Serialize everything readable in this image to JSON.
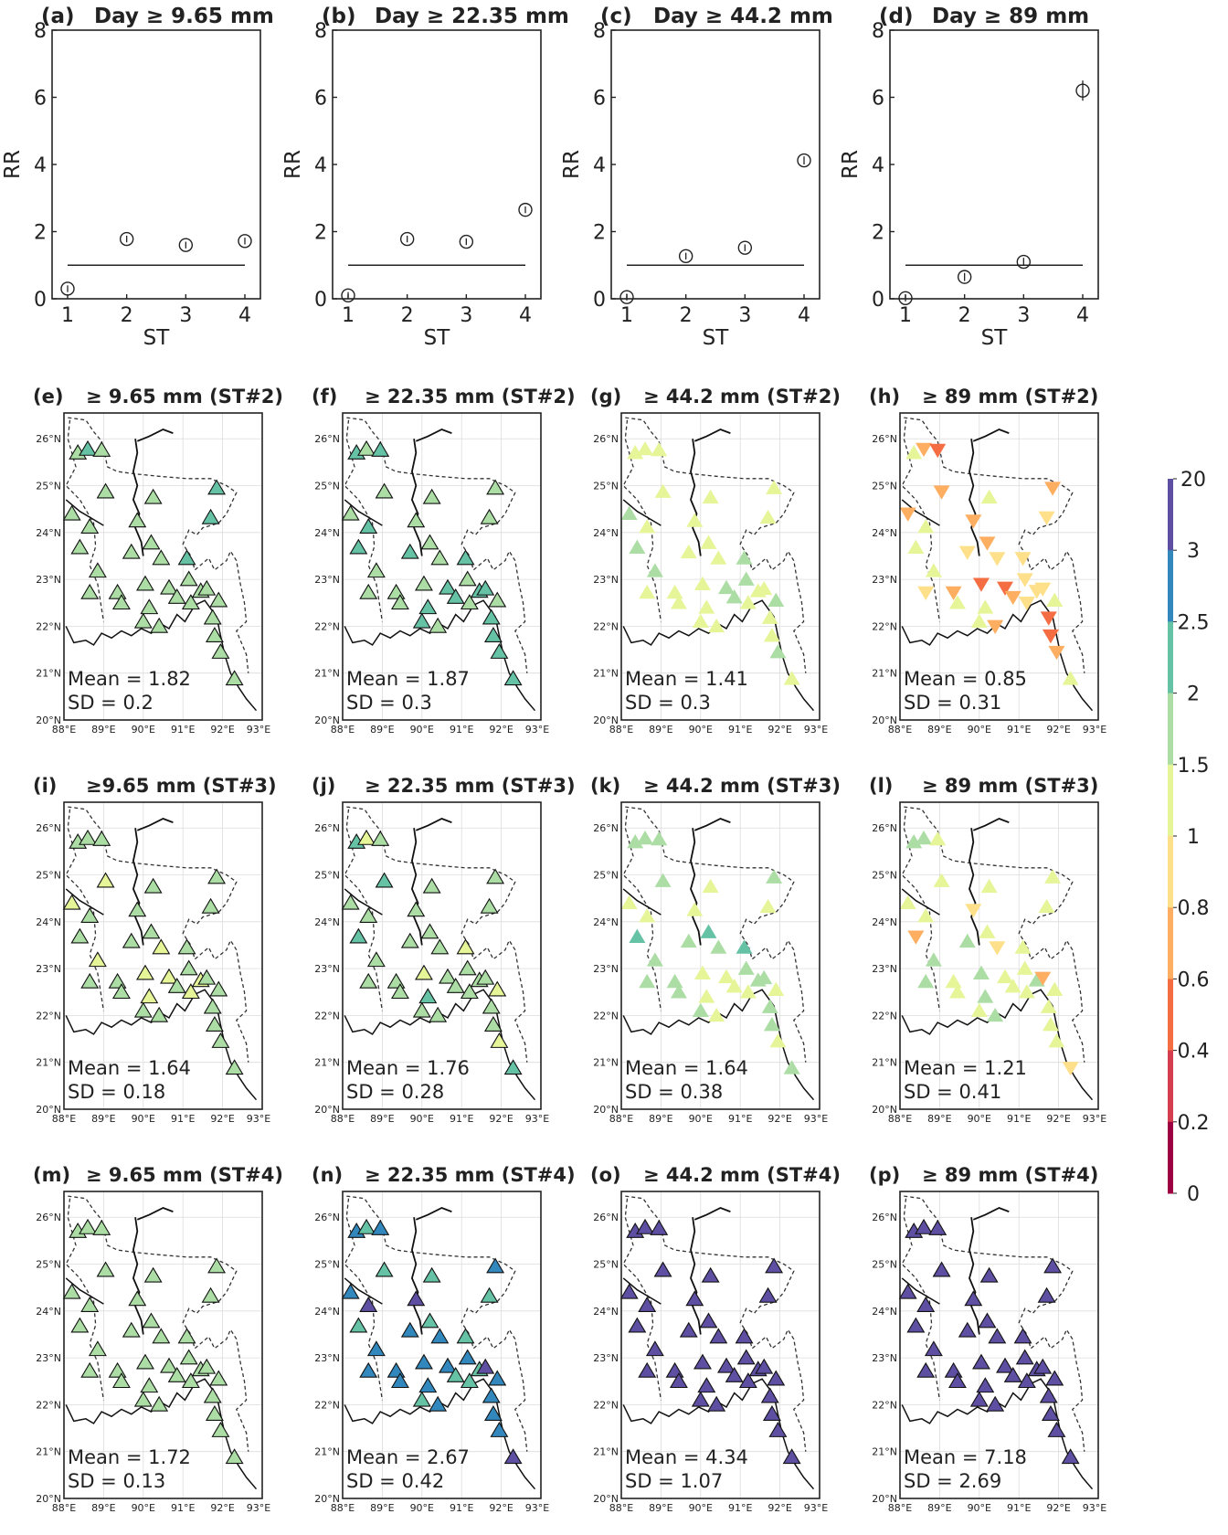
{
  "colorbar": {
    "ticks": [
      "20",
      "3",
      "2.5",
      "2",
      "1.5",
      "1",
      "0.8",
      "0.6",
      "0.4",
      "0.2",
      "0"
    ],
    "colors": [
      "#5e4fa2",
      "#3288bd",
      "#66c2a5",
      "#abdda4",
      "#e6f598",
      "#fee08b",
      "#fdae61",
      "#f46d43",
      "#d53e4f",
      "#9e0142"
    ]
  },
  "chart_data": [
    {
      "type": "scatter",
      "id": "a",
      "panel_label": "(a)",
      "title": "Day ≥ 9.65 mm",
      "xlabel": "ST",
      "ylabel": "RR",
      "x": [
        1,
        2,
        3,
        4
      ],
      "y": [
        0.3,
        1.78,
        1.6,
        1.72
      ],
      "err": [
        0.1,
        0.1,
        0.1,
        0.1
      ],
      "reference_line": 1,
      "ylim": [
        0,
        8
      ],
      "yticks": [
        "0",
        "2",
        "4",
        "6",
        "8"
      ],
      "xticks": [
        "1",
        "2",
        "3",
        "4"
      ]
    },
    {
      "type": "scatter",
      "id": "b",
      "panel_label": "(b)",
      "title": "Day ≥ 22.35 mm",
      "xlabel": "ST",
      "ylabel": "RR",
      "x": [
        1,
        2,
        3,
        4
      ],
      "y": [
        0.1,
        1.78,
        1.7,
        2.65
      ],
      "err": [
        0.1,
        0.1,
        0.1,
        0.1
      ],
      "reference_line": 1,
      "ylim": [
        0,
        8
      ],
      "yticks": [
        "0",
        "2",
        "4",
        "6",
        "8"
      ],
      "xticks": [
        "1",
        "2",
        "3",
        "4"
      ]
    },
    {
      "type": "scatter",
      "id": "c",
      "panel_label": "(c)",
      "title": "Day ≥ 44.2 mm",
      "xlabel": "ST",
      "ylabel": "RR",
      "x": [
        1,
        2,
        3,
        4
      ],
      "y": [
        0.05,
        1.27,
        1.52,
        4.12
      ],
      "err": [
        0.1,
        0.1,
        0.1,
        0.12
      ],
      "reference_line": 1,
      "ylim": [
        0,
        8
      ],
      "yticks": [
        "0",
        "2",
        "4",
        "6",
        "8"
      ],
      "xticks": [
        "1",
        "2",
        "3",
        "4"
      ]
    },
    {
      "type": "scatter",
      "id": "d",
      "panel_label": "(d)",
      "title": "Day ≥ 89 mm",
      "xlabel": "ST",
      "ylabel": "RR",
      "x": [
        1,
        2,
        3,
        4
      ],
      "y": [
        0.02,
        0.65,
        1.1,
        6.2
      ],
      "err": [
        0.1,
        0.12,
        0.12,
        0.3
      ],
      "reference_line": 1,
      "ylim": [
        0,
        8
      ],
      "yticks": [
        "0",
        "2",
        "4",
        "6",
        "8"
      ],
      "xticks": [
        "1",
        "2",
        "3",
        "4"
      ]
    }
  ],
  "maps": {
    "xticks": [
      "88°E",
      "89°E",
      "90°E",
      "91°E",
      "92°E",
      "93°E"
    ],
    "yticks": [
      "26°N",
      "25°N",
      "24°N",
      "23°N",
      "22°N",
      "21°N",
      "20°N"
    ],
    "stations": [
      [
        88.35,
        25.7
      ],
      [
        88.6,
        25.78
      ],
      [
        88.95,
        25.76
      ],
      [
        89.05,
        24.87
      ],
      [
        90.25,
        24.75
      ],
      [
        91.85,
        24.95
      ],
      [
        88.2,
        24.4
      ],
      [
        88.65,
        24.12
      ],
      [
        89.85,
        24.25
      ],
      [
        91.7,
        24.32
      ],
      [
        88.4,
        23.68
      ],
      [
        88.85,
        23.18
      ],
      [
        89.7,
        23.58
      ],
      [
        90.2,
        23.78
      ],
      [
        90.45,
        23.45
      ],
      [
        91.1,
        23.45
      ],
      [
        88.65,
        22.72
      ],
      [
        89.35,
        22.72
      ],
      [
        89.45,
        22.5
      ],
      [
        90.05,
        22.9
      ],
      [
        90.15,
        22.4
      ],
      [
        90.65,
        22.82
      ],
      [
        90.85,
        22.62
      ],
      [
        91.2,
        22.5
      ],
      [
        91.45,
        22.75
      ],
      [
        91.15,
        23.0
      ],
      [
        91.6,
        22.8
      ],
      [
        90.0,
        22.1
      ],
      [
        90.4,
        22.0
      ],
      [
        91.9,
        22.55
      ],
      [
        91.75,
        22.18
      ],
      [
        91.8,
        21.8
      ],
      [
        91.95,
        21.45
      ],
      [
        92.3,
        20.88
      ]
    ],
    "panels": [
      {
        "id": "e",
        "panel_label": "(e)",
        "title": "≥ 9.65 mm (ST#2)",
        "mean": "Mean = 1.82",
        "sd": "SD = 0.2",
        "base": 1.82,
        "spread": 0.2,
        "seed": 3,
        "marker": "up"
      },
      {
        "id": "f",
        "panel_label": "(f)",
        "title": "≥ 22.35 mm (ST#2)",
        "mean": "Mean = 1.87",
        "sd": "SD = 0.3",
        "base": 1.87,
        "spread": 0.3,
        "seed": 5,
        "marker": "up"
      },
      {
        "id": "g",
        "panel_label": "(g)",
        "title": "≥ 44.2 mm (ST#2)",
        "mean": "Mean = 1.41",
        "sd": "SD = 0.3",
        "base": 1.41,
        "spread": 0.3,
        "seed": 7,
        "marker": "mixed"
      },
      {
        "id": "h",
        "panel_label": "(h)",
        "title": "≥ 89 mm (ST#2)",
        "mean": "Mean = 0.85",
        "sd": "SD = 0.31",
        "base": 0.85,
        "spread": 0.31,
        "seed": 11,
        "marker": "mixed"
      },
      {
        "id": "i",
        "panel_label": "(i)",
        "title": "≥9.65 mm (ST#3)",
        "mean": "Mean = 1.64",
        "sd": "SD = 0.18",
        "base": 1.64,
        "spread": 0.18,
        "seed": 13,
        "marker": "up"
      },
      {
        "id": "j",
        "panel_label": "(j)",
        "title": "≥ 22.35 mm (ST#3)",
        "mean": "Mean = 1.76",
        "sd": "SD = 0.28",
        "base": 1.76,
        "spread": 0.28,
        "seed": 17,
        "marker": "up"
      },
      {
        "id": "k",
        "panel_label": "(k)",
        "title": "≥ 44.2 mm (ST#3)",
        "mean": "Mean = 1.64",
        "sd": "SD = 0.38",
        "base": 1.64,
        "spread": 0.38,
        "seed": 19,
        "marker": "mixed"
      },
      {
        "id": "l",
        "panel_label": "(l)",
        "title": "≥ 89 mm (ST#3)",
        "mean": "Mean = 1.21",
        "sd": "SD = 0.41",
        "base": 1.21,
        "spread": 0.41,
        "seed": 23,
        "marker": "mixed"
      },
      {
        "id": "m",
        "panel_label": "(m)",
        "title": "≥ 9.65 mm (ST#4)",
        "mean": "Mean = 1.72",
        "sd": "SD = 0.13",
        "base": 1.72,
        "spread": 0.13,
        "seed": 29,
        "marker": "up"
      },
      {
        "id": "n",
        "panel_label": "(n)",
        "title": "≥ 22.35 mm (ST#4)",
        "mean": "Mean = 2.67",
        "sd": "SD = 0.42",
        "base": 2.67,
        "spread": 0.42,
        "seed": 31,
        "marker": "up"
      },
      {
        "id": "o",
        "panel_label": "(o)",
        "title": "≥ 44.2 mm (ST#4)",
        "mean": "Mean = 4.34",
        "sd": "SD = 1.07",
        "base": 4.34,
        "spread": 1.07,
        "seed": 37,
        "marker": "up"
      },
      {
        "id": "p",
        "panel_label": "(p)",
        "title": "≥ 89 mm (ST#4)",
        "mean": "Mean = 7.18",
        "sd": "SD = 2.69",
        "base": 7.18,
        "spread": 2.69,
        "seed": 41,
        "marker": "up"
      }
    ]
  }
}
